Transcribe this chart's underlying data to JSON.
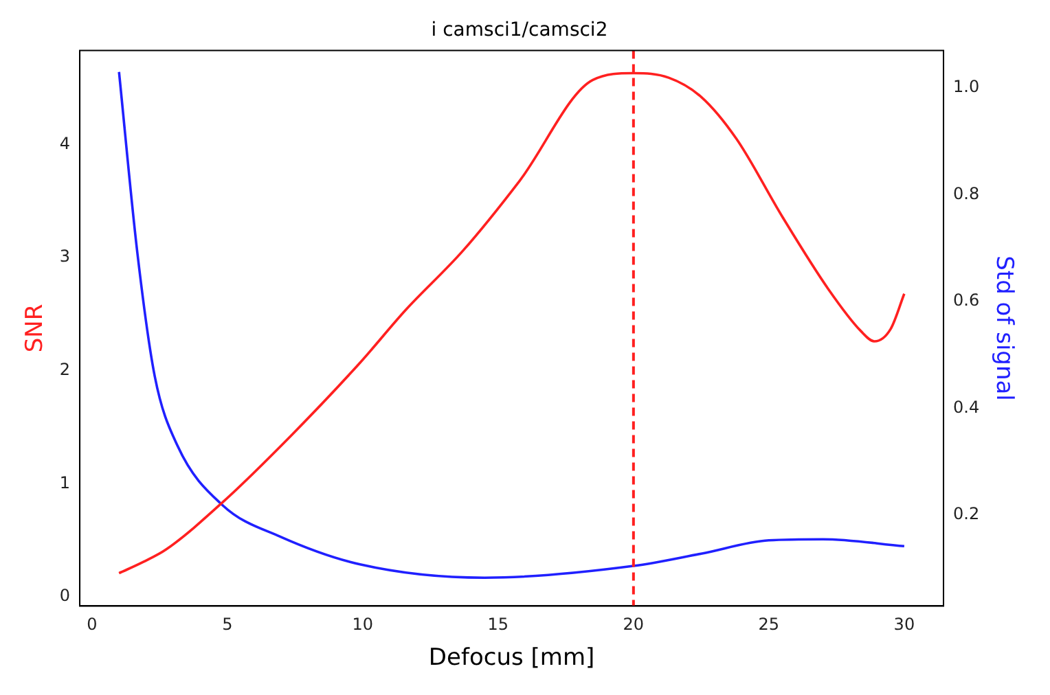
{
  "chart_data": {
    "type": "line",
    "title": "i camsci1/camsci2",
    "xlabel": "Defocus [mm]",
    "ylabel": "SNR",
    "y2label": "Std of signal",
    "xlim": [
      -0.45,
      31.45
    ],
    "xticks": [
      0,
      5,
      10,
      15,
      20,
      25,
      30
    ],
    "ylim": [
      -0.08,
      4.83
    ],
    "yticks": [
      0,
      1,
      2,
      3,
      4
    ],
    "y2lim": [
      0.03,
      1.07
    ],
    "y2ticks": [
      0.2,
      0.4,
      0.6,
      0.8,
      {
        "value": 1,
        "label": "1.0"
      }
    ],
    "grid": false,
    "legend": false,
    "marker": "none",
    "line_style": "solid",
    "series": [
      {
        "color": "#ff2020",
        "x": [
          1,
          1.9,
          2.74,
          4.84,
          7.37,
          9.9,
          11.6,
          13.7,
          15.8,
          18.5,
          20,
          21.3,
          22.5,
          23.8,
          25.5,
          27.2,
          28.4,
          28.9,
          29.5,
          30
        ],
        "values": [
          0.21,
          0.31,
          0.42,
          0.84,
          1.43,
          2.07,
          2.54,
          3.06,
          3.68,
          4.57,
          4.63,
          4.59,
          4.42,
          4.05,
          3.36,
          2.72,
          2.35,
          2.26,
          2.37,
          2.68
        ]
      },
      {
        "color": "#2020ff",
        "axis": "y2",
        "x": [
          1,
          1.68,
          2.32,
          3.16,
          4.84,
          6.95,
          9.9,
          14.5,
          20,
          22.5,
          25,
          27,
          30
        ],
        "values": [
          1.03,
          0.69,
          0.46,
          0.33,
          0.218,
          0.16,
          0.108,
          0.083,
          0.105,
          0.128,
          0.153,
          0.155,
          0.142
        ]
      }
    ],
    "ref_lines": [
      {
        "axis": "x",
        "value": 20,
        "color": "#ff2020",
        "line_style": "dashed"
      }
    ]
  }
}
